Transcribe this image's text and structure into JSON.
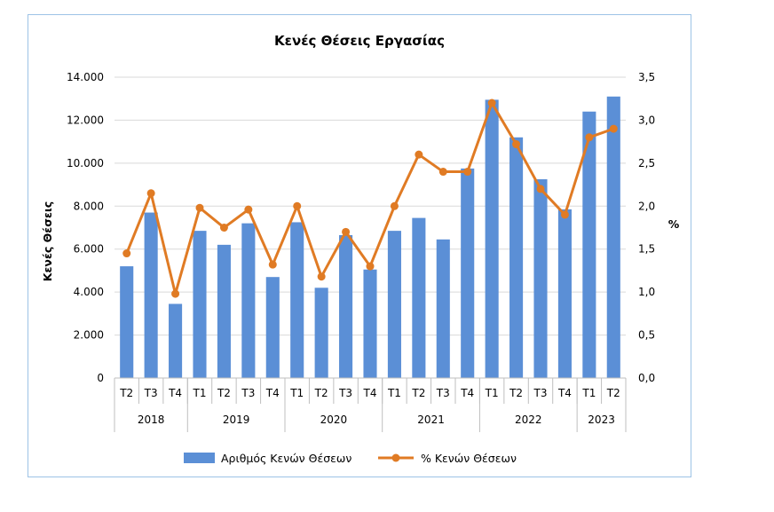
{
  "chart_data": {
    "type": "bar+line",
    "title": "Κενές Θέσεις Εργασίας",
    "ylabel": "Κενές Θέσεις",
    "y2label": "%",
    "ylim": [
      0,
      14000
    ],
    "y2lim": [
      0,
      3.5
    ],
    "yticks": [
      "0",
      "2.000",
      "4.000",
      "6.000",
      "8.000",
      "10.000",
      "12.000",
      "14.000"
    ],
    "y2ticks": [
      "0,0",
      "0,5",
      "1,0",
      "1,5",
      "2,0",
      "2,5",
      "3,0",
      "3,5"
    ],
    "categories": [
      "T2",
      "T3",
      "T4",
      "T1",
      "T2",
      "T3",
      "T4",
      "T1",
      "T2",
      "T3",
      "T4",
      "T1",
      "T2",
      "T3",
      "T4",
      "T1",
      "T2",
      "T3",
      "T4",
      "T1",
      "T2"
    ],
    "years": [
      {
        "label": "2018",
        "count": 3
      },
      {
        "label": "2019",
        "count": 4
      },
      {
        "label": "2020",
        "count": 4
      },
      {
        "label": "2021",
        "count": 4
      },
      {
        "label": "2022",
        "count": 4
      },
      {
        "label": "2023",
        "count": 2
      }
    ],
    "series": [
      {
        "name": "Αριθμός Κενών Θέσεων",
        "kind": "bar",
        "axis": "left",
        "color": "#5b8fd6",
        "values": [
          5200,
          7700,
          3450,
          6850,
          6200,
          7200,
          4700,
          7250,
          4200,
          6650,
          5050,
          6850,
          7450,
          6450,
          9750,
          12950,
          11200,
          9250,
          7850,
          12400,
          13100
        ]
      },
      {
        "name": "% Κενών Θέσεων",
        "kind": "line",
        "axis": "right",
        "color": "#e07b24",
        "values": [
          1.45,
          2.15,
          0.98,
          1.98,
          1.75,
          1.96,
          1.32,
          2.0,
          1.18,
          1.7,
          1.3,
          2.0,
          2.6,
          2.4,
          2.4,
          3.2,
          2.72,
          2.2,
          1.9,
          2.8,
          2.9
        ]
      }
    ],
    "legend": "bottom",
    "grid": true
  }
}
